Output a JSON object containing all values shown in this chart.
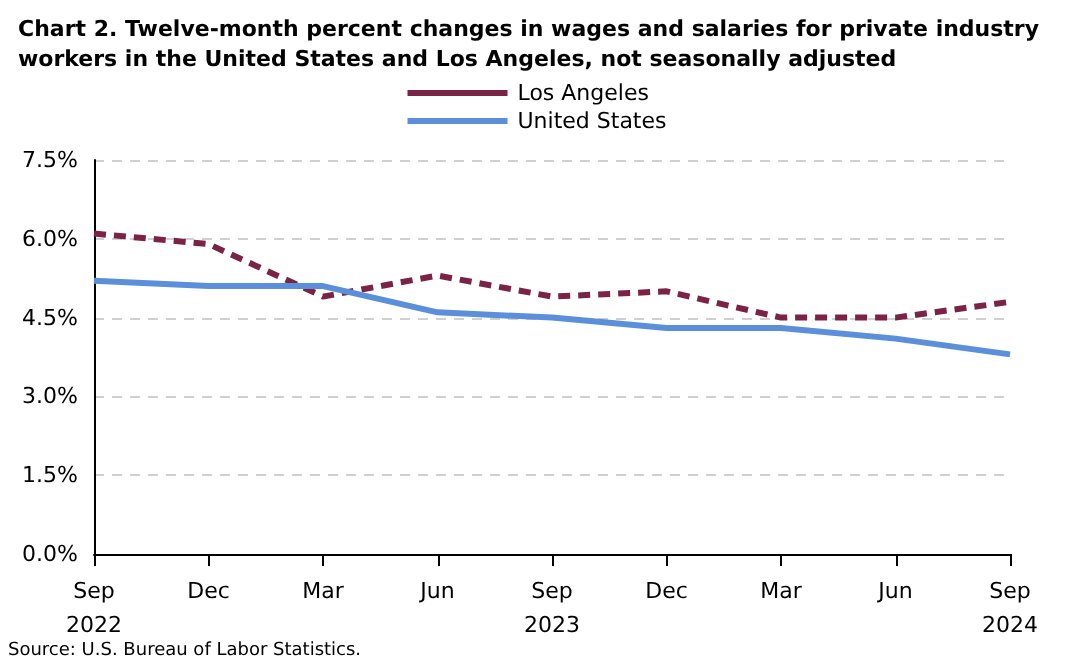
{
  "chart_data": {
    "type": "line",
    "title": "Chart 2. Twelve-month percent changes in wages and salaries for private industry workers in the United States and Los Angeles, not seasonally adjusted",
    "categories": [
      "Sep\n2022",
      "Dec",
      "Mar",
      "Jun",
      "Sep\n2023",
      "Dec",
      "Mar",
      "Jun",
      "Sep\n2024"
    ],
    "series": [
      {
        "name": "Los Angeles",
        "color": "#7b2346",
        "line_style": "dashed",
        "values": [
          6.1,
          5.9,
          4.9,
          5.3,
          4.9,
          5.0,
          4.5,
          4.5,
          4.8
        ]
      },
      {
        "name": "United States",
        "color": "#5b8fda",
        "line_style": "solid",
        "values": [
          5.2,
          5.1,
          5.1,
          4.6,
          4.5,
          4.3,
          4.3,
          4.1,
          3.8
        ]
      }
    ],
    "ylim": [
      0,
      7.5
    ],
    "yticks": [
      {
        "value": 0,
        "label": "0.0%"
      },
      {
        "value": 1.5,
        "label": "1.5%"
      },
      {
        "value": 3,
        "label": "3.0%"
      },
      {
        "value": 4.5,
        "label": "4.5%"
      },
      {
        "value": 6,
        "label": "6.0%"
      },
      {
        "value": 7.5,
        "label": "7.5%"
      }
    ],
    "grid": "y",
    "legend": "top",
    "marker": "none",
    "annotations": [
      "Source: U.S. Bureau of Labor Statistics."
    ]
  }
}
